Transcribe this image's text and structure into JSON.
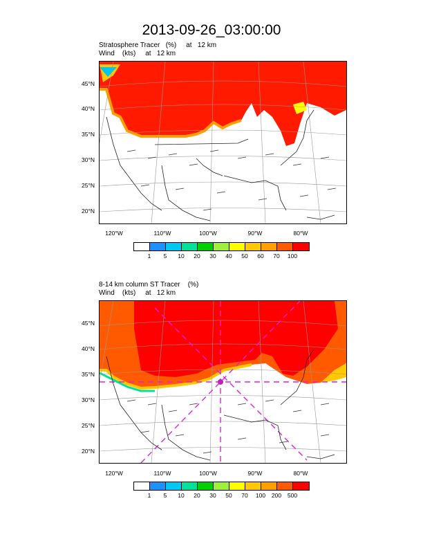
{
  "title": "2013-09-26_03:00:00",
  "panel1": {
    "subtitle_line1": "Stratosphere Tracer   (%)     at   12 km",
    "subtitle_line2": "Wind    (kts)     at   12 km",
    "lat_labels": [
      "45°N",
      "40°N",
      "35°N",
      "30°N",
      "25°N",
      "20°N"
    ],
    "lon_labels": [
      "120°W",
      "110°W",
      "100°W",
      "90°W",
      "80°W"
    ],
    "colorbar_labels": [
      "1",
      "5",
      "10",
      "20",
      "30",
      "40",
      "50",
      "60",
      "70",
      "100"
    ],
    "colors": [
      "#ffffff",
      "#1e90ff",
      "#00c8f0",
      "#00e29a",
      "#00d000",
      "#9ef03c",
      "#ffff00",
      "#ffc800",
      "#ff9f00",
      "#ff5a00",
      "#ff0000"
    ]
  },
  "panel2": {
    "subtitle_line1": "8-14 km column ST Tracer    (%)",
    "subtitle_line2": "Wind    (kts)     at   12 km",
    "lat_labels": [
      "45°N",
      "40°N",
      "35°N",
      "30°N",
      "25°N",
      "20°N"
    ],
    "lon_labels": [
      "120°W",
      "110°W",
      "100°W",
      "90°W",
      "80°W"
    ],
    "colorbar_labels": [
      "1",
      "5",
      "10",
      "20",
      "30",
      "50",
      "70",
      "100",
      "200",
      "500"
    ],
    "colors": [
      "#ffffff",
      "#1e90ff",
      "#00c8f0",
      "#00e29a",
      "#00d000",
      "#9ef03c",
      "#ffff00",
      "#ffc800",
      "#ff9f00",
      "#ff5a00",
      "#ff0000"
    ]
  }
}
